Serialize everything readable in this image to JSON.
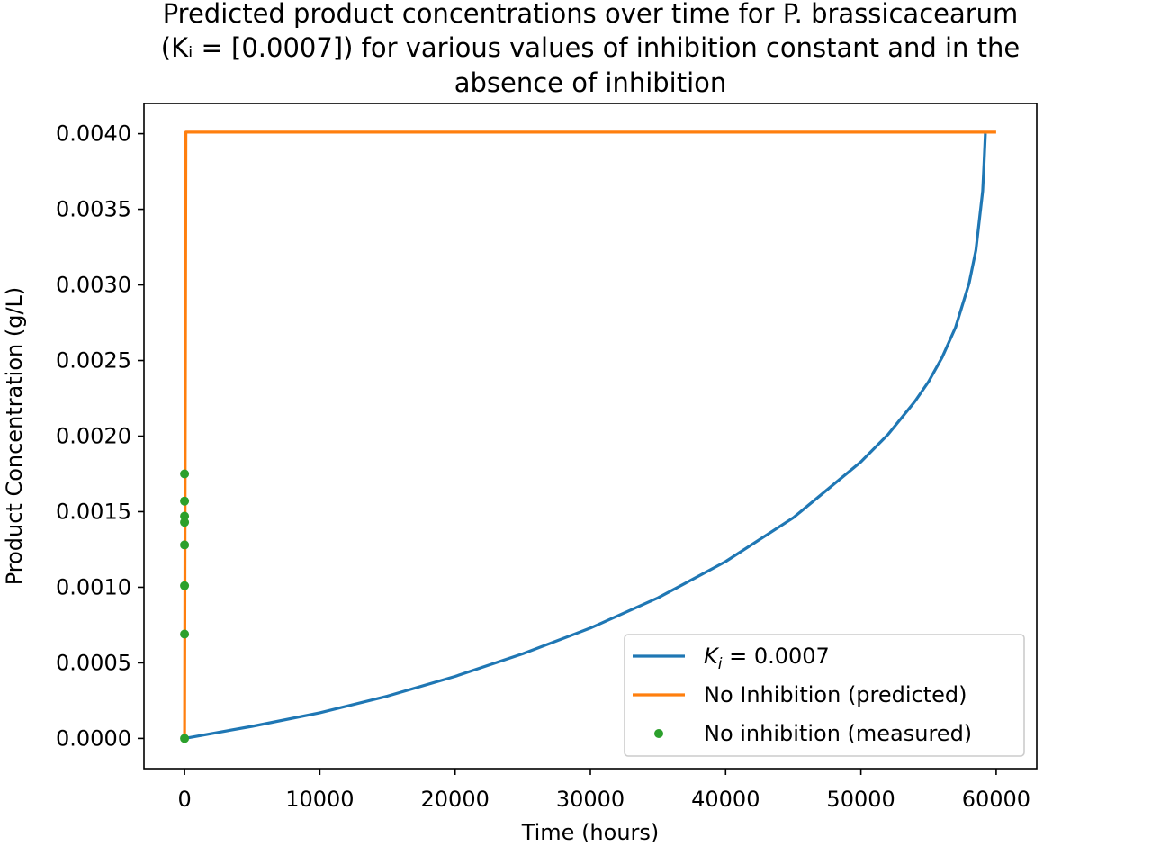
{
  "chart_data": {
    "type": "line",
    "title_lines": [
      "Predicted product concentrations over time for P. brassicacearum",
      "(Kᵢ = [0.0007]) for various values of inhibition constant and in the",
      "absence of inhibition"
    ],
    "xlabel": "Time (hours)",
    "ylabel": "Product Concentration (g/L)",
    "xlim": [
      -3000,
      63000
    ],
    "ylim": [
      -0.0002,
      0.0042
    ],
    "x_ticks": [
      0,
      10000,
      20000,
      30000,
      40000,
      50000,
      60000
    ],
    "x_tick_labels": [
      "0",
      "10000",
      "20000",
      "30000",
      "40000",
      "50000",
      "60000"
    ],
    "y_ticks": [
      0.0,
      0.0005,
      0.001,
      0.0015,
      0.002,
      0.0025,
      0.003,
      0.0035,
      0.004
    ],
    "y_tick_labels": [
      "0.0000",
      "0.0005",
      "0.0010",
      "0.0015",
      "0.0020",
      "0.0025",
      "0.0030",
      "0.0035",
      "0.0040"
    ],
    "grid": false,
    "legend_placement": "lower-right",
    "series": [
      {
        "name": "Kᵢ = 0.0007",
        "kind": "line",
        "color": "#1f77b4",
        "x": [
          0,
          5000,
          10000,
          15000,
          20000,
          25000,
          30000,
          35000,
          40000,
          45000,
          50000,
          52000,
          54000,
          55000,
          56000,
          57000,
          58000,
          58500,
          59000,
          59100,
          59200
        ],
        "y": [
          0.0,
          8e-05,
          0.00017,
          0.00028,
          0.00041,
          0.00056,
          0.00073,
          0.00093,
          0.00117,
          0.00146,
          0.00183,
          0.00201,
          0.00223,
          0.00236,
          0.00252,
          0.00272,
          0.00301,
          0.00323,
          0.00362,
          0.0038,
          0.004
        ]
      },
      {
        "name": "No Inhibition (predicted)",
        "kind": "line",
        "color": "#ff7f0e",
        "x": [
          0,
          100,
          60000
        ],
        "y": [
          0.0,
          0.00401,
          0.00401
        ]
      },
      {
        "name": "No inhibition (measured)",
        "kind": "points",
        "color": "#2ca02c",
        "x": [
          0,
          0,
          0,
          0,
          0,
          0,
          0,
          0
        ],
        "y": [
          0.0,
          0.00069,
          0.00101,
          0.00128,
          0.00143,
          0.00147,
          0.00157,
          0.00175
        ]
      }
    ],
    "legend": [
      {
        "label_main": "K",
        "label_sub": "i",
        "label_rest": " = 0.0007",
        "kind": "line",
        "color": "#1f77b4"
      },
      {
        "label": "No Inhibition (predicted)",
        "kind": "line",
        "color": "#ff7f0e"
      },
      {
        "label": "No inhibition (measured)",
        "kind": "points",
        "color": "#2ca02c"
      }
    ]
  }
}
